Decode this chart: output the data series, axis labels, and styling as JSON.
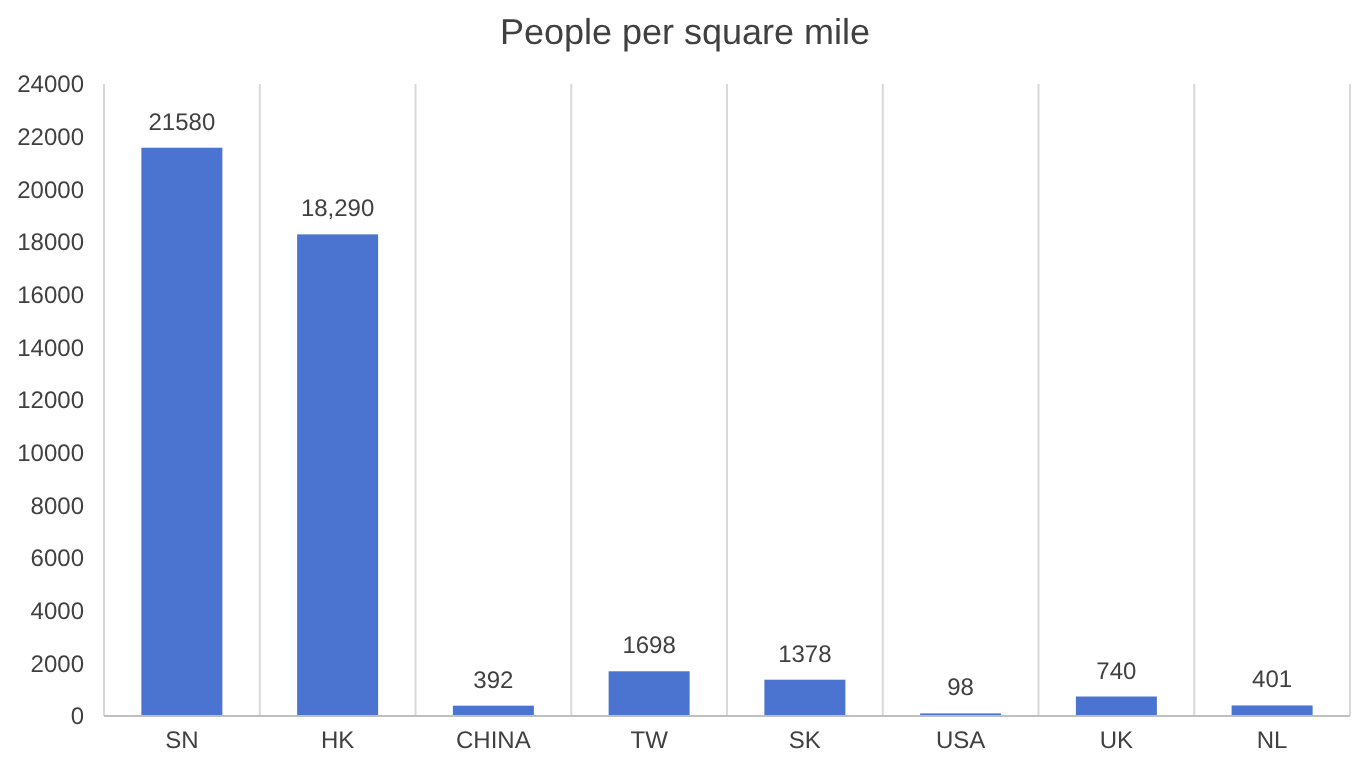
{
  "chart_data": {
    "type": "bar",
    "title": "People per square mile",
    "categories": [
      "SN",
      "HK",
      "CHINA",
      "TW",
      "SK",
      "USA",
      "UK",
      "NL"
    ],
    "values": [
      21580,
      18290,
      392,
      1698,
      1378,
      98,
      740,
      401
    ],
    "value_labels": [
      "21580",
      "18,290",
      "392",
      "1698",
      "1378",
      "98",
      "740",
      "401"
    ],
    "color": "#4a74cf",
    "ylim": [
      0,
      24000
    ],
    "yticks": [
      0,
      2000,
      4000,
      6000,
      8000,
      10000,
      12000,
      14000,
      16000,
      18000,
      20000,
      22000,
      24000
    ],
    "grid": "x"
  }
}
